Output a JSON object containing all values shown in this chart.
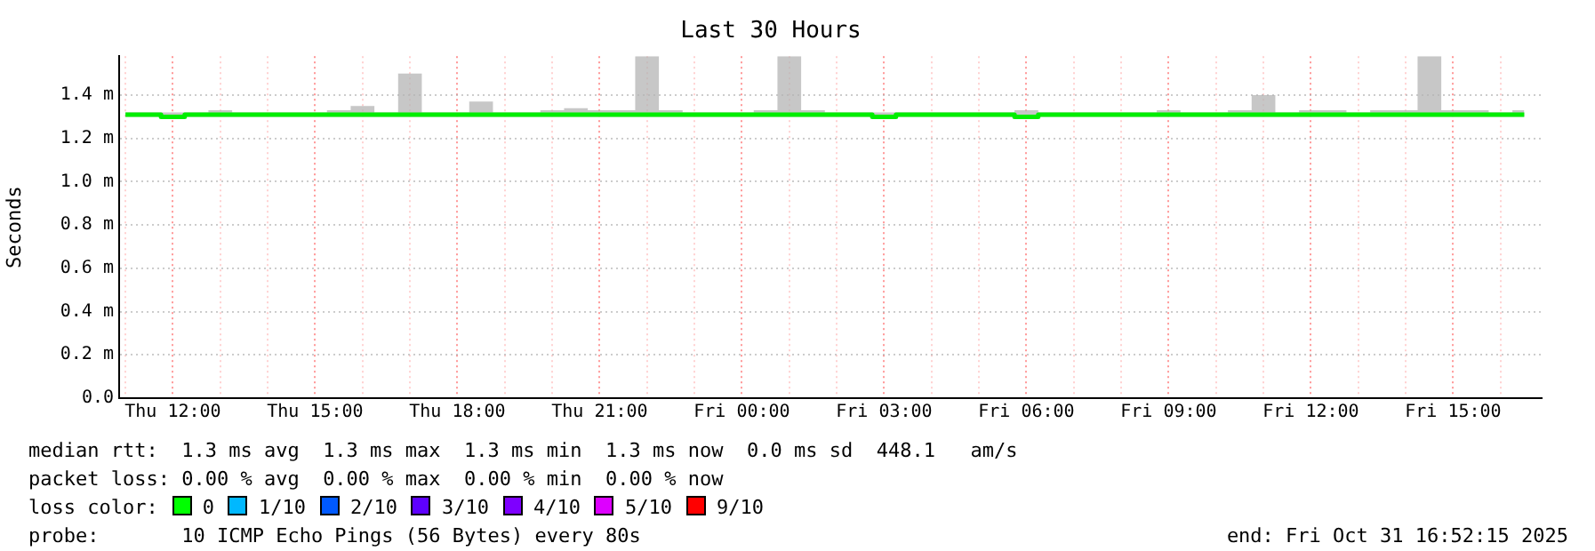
{
  "chart_data": {
    "type": "step",
    "title": "Last 30 Hours",
    "ylabel": "Seconds",
    "x": [
      "2025-10-30T11:00",
      "2025-10-30T11:30",
      "2025-10-30T12:00",
      "2025-10-30T12:30",
      "2025-10-30T13:00",
      "2025-10-30T13:30",
      "2025-10-30T14:00",
      "2025-10-30T14:30",
      "2025-10-30T15:00",
      "2025-10-30T15:30",
      "2025-10-30T16:00",
      "2025-10-30T16:30",
      "2025-10-30T17:00",
      "2025-10-30T17:30",
      "2025-10-30T18:00",
      "2025-10-30T18:30",
      "2025-10-30T19:00",
      "2025-10-30T19:30",
      "2025-10-30T20:00",
      "2025-10-30T20:30",
      "2025-10-30T21:00",
      "2025-10-30T21:30",
      "2025-10-30T22:00",
      "2025-10-30T22:30",
      "2025-10-30T23:00",
      "2025-10-30T23:30",
      "2025-10-31T00:00",
      "2025-10-31T00:30",
      "2025-10-31T01:00",
      "2025-10-31T01:30",
      "2025-10-31T02:00",
      "2025-10-31T02:30",
      "2025-10-31T03:00",
      "2025-10-31T03:30",
      "2025-10-31T04:00",
      "2025-10-31T04:30",
      "2025-10-31T05:00",
      "2025-10-31T05:30",
      "2025-10-31T06:00",
      "2025-10-31T06:30",
      "2025-10-31T07:00",
      "2025-10-31T07:30",
      "2025-10-31T08:00",
      "2025-10-31T08:30",
      "2025-10-31T09:00",
      "2025-10-31T09:30",
      "2025-10-31T10:00",
      "2025-10-31T10:30",
      "2025-10-31T11:00",
      "2025-10-31T11:30",
      "2025-10-31T12:00",
      "2025-10-31T12:30",
      "2025-10-31T13:00",
      "2025-10-31T13:30",
      "2025-10-31T14:00",
      "2025-10-31T14:30",
      "2025-10-31T15:00",
      "2025-10-31T15:30",
      "2025-10-31T16:00",
      "2025-10-31T16:30"
    ],
    "series": [
      {
        "color": "#00ee00",
        "values": [
          1.31,
          1.31,
          1.3,
          1.31,
          1.31,
          1.31,
          1.31,
          1.31,
          1.31,
          1.31,
          1.31,
          1.31,
          1.31,
          1.31,
          1.31,
          1.31,
          1.31,
          1.31,
          1.31,
          1.31,
          1.31,
          1.31,
          1.31,
          1.31,
          1.31,
          1.31,
          1.31,
          1.31,
          1.31,
          1.31,
          1.31,
          1.31,
          1.3,
          1.31,
          1.31,
          1.31,
          1.31,
          1.31,
          1.3,
          1.31,
          1.31,
          1.31,
          1.31,
          1.31,
          1.31,
          1.31,
          1.31,
          1.31,
          1.31,
          1.31,
          1.31,
          1.31,
          1.31,
          1.31,
          1.31,
          1.31,
          1.31,
          1.31,
          1.31,
          1.31
        ],
        "lower": [
          1.3,
          1.3,
          1.3,
          1.3,
          1.3,
          1.3,
          1.3,
          1.3,
          1.3,
          1.3,
          1.3,
          1.3,
          1.3,
          1.3,
          1.3,
          1.3,
          1.3,
          1.3,
          1.3,
          1.3,
          1.3,
          1.3,
          1.3,
          1.3,
          1.3,
          1.3,
          1.3,
          1.3,
          1.3,
          1.3,
          1.3,
          1.3,
          1.3,
          1.3,
          1.3,
          1.3,
          1.3,
          1.3,
          1.3,
          1.3,
          1.3,
          1.3,
          1.3,
          1.3,
          1.3,
          1.3,
          1.3,
          1.3,
          1.3,
          1.3,
          1.3,
          1.3,
          1.3,
          1.3,
          1.3,
          1.3,
          1.3,
          1.3,
          1.3,
          1.3
        ],
        "upper": [
          1.32,
          1.32,
          1.32,
          1.32,
          1.33,
          1.32,
          1.32,
          1.32,
          1.32,
          1.33,
          1.35,
          1.32,
          1.5,
          1.32,
          1.32,
          1.37,
          1.32,
          1.32,
          1.33,
          1.34,
          1.33,
          1.33,
          1.58,
          1.33,
          1.32,
          1.32,
          1.32,
          1.33,
          1.58,
          1.33,
          1.32,
          1.32,
          1.32,
          1.32,
          1.32,
          1.32,
          1.32,
          1.32,
          1.33,
          1.32,
          1.32,
          1.32,
          1.32,
          1.32,
          1.33,
          1.32,
          1.32,
          1.33,
          1.4,
          1.32,
          1.33,
          1.33,
          1.32,
          1.33,
          1.33,
          1.58,
          1.33,
          1.33,
          1.32,
          1.33
        ]
      }
    ],
    "xlim": [
      "2025-10-30T10:52",
      "2025-10-31T16:52"
    ],
    "xticks": [
      {
        "value": "2025-10-30T11:00",
        "label": null
      },
      {
        "value": "2025-10-30T12:00",
        "label": "Thu 12:00"
      },
      {
        "value": "2025-10-30T13:00",
        "label": null
      },
      {
        "value": "2025-10-30T14:00",
        "label": null
      },
      {
        "value": "2025-10-30T15:00",
        "label": "Thu 15:00"
      },
      {
        "value": "2025-10-30T16:00",
        "label": null
      },
      {
        "value": "2025-10-30T17:00",
        "label": null
      },
      {
        "value": "2025-10-30T18:00",
        "label": "Thu 18:00"
      },
      {
        "value": "2025-10-30T19:00",
        "label": null
      },
      {
        "value": "2025-10-30T20:00",
        "label": null
      },
      {
        "value": "2025-10-30T21:00",
        "label": "Thu 21:00"
      },
      {
        "value": "2025-10-30T22:00",
        "label": null
      },
      {
        "value": "2025-10-30T23:00",
        "label": null
      },
      {
        "value": "2025-10-31T00:00",
        "label": "Fri 00:00"
      },
      {
        "value": "2025-10-31T01:00",
        "label": null
      },
      {
        "value": "2025-10-31T02:00",
        "label": null
      },
      {
        "value": "2025-10-31T03:00",
        "label": "Fri 03:00"
      },
      {
        "value": "2025-10-31T04:00",
        "label": null
      },
      {
        "value": "2025-10-31T05:00",
        "label": null
      },
      {
        "value": "2025-10-31T06:00",
        "label": "Fri 06:00"
      },
      {
        "value": "2025-10-31T07:00",
        "label": null
      },
      {
        "value": "2025-10-31T08:00",
        "label": null
      },
      {
        "value": "2025-10-31T09:00",
        "label": "Fri 09:00"
      },
      {
        "value": "2025-10-31T10:00",
        "label": null
      },
      {
        "value": "2025-10-31T11:00",
        "label": null
      },
      {
        "value": "2025-10-31T12:00",
        "label": "Fri 12:00"
      },
      {
        "value": "2025-10-31T13:00",
        "label": null
      },
      {
        "value": "2025-10-31T14:00",
        "label": null
      },
      {
        "value": "2025-10-31T15:00",
        "label": "Fri 15:00"
      },
      {
        "value": "2025-10-31T16:00",
        "label": null
      }
    ],
    "ylim": [
      0,
      1.58
    ],
    "yticks": [
      {
        "value": 0,
        "label": "0.0"
      },
      {
        "value": 0.2,
        "label": "0.2 m"
      },
      {
        "value": 0.4,
        "label": "0.4 m"
      },
      {
        "value": 0.6,
        "label": "0.6 m"
      },
      {
        "value": 0.8,
        "label": "0.8 m"
      },
      {
        "value": 1,
        "label": "1.0 m"
      },
      {
        "value": 1.2,
        "label": "1.2 m"
      },
      {
        "value": 1.4,
        "label": "1.4 m"
      }
    ],
    "grid": true,
    "annotations": [
      "median rtt:  1.3 ms avg  1.3 ms max  1.3 ms min  1.3 ms now  0.0 ms sd  448.1   am/s",
      "packet loss: 0.00 % avg  0.00 % max  0.00 % min  0.00 % now",
      "loss color:",
      "0",
      "1/10",
      "2/10",
      "3/10",
      "4/10",
      "5/10",
      "9/10",
      "probe:       10 ICMP Echo Pings (56 Bytes) every 80s",
      "end: Fri Oct 31 16:52:15 2025"
    ]
  }
}
